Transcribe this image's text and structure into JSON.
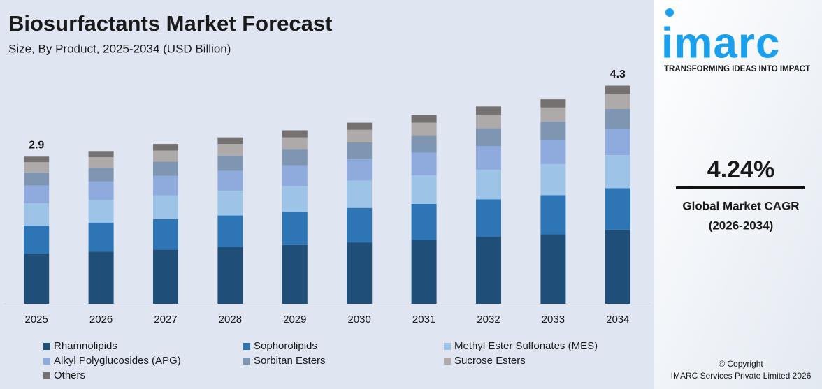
{
  "chart_data": {
    "type": "stacked_bar",
    "title": "Biosurfactants Market Forecast",
    "subtitle": "Size, By Product, 2025-2034 (USD Billion)",
    "categories": [
      "2025",
      "2026",
      "2027",
      "2028",
      "2029",
      "2030",
      "2031",
      "2032",
      "2033",
      "2034"
    ],
    "series": [
      {
        "name": "Rhamnolipids",
        "color": "#1f4e79",
        "values": [
          0.99,
          1.03,
          1.07,
          1.12,
          1.16,
          1.21,
          1.26,
          1.32,
          1.37,
          1.46
        ]
      },
      {
        "name": "Sophorolipids",
        "color": "#2e75b6",
        "values": [
          0.55,
          0.57,
          0.6,
          0.62,
          0.65,
          0.68,
          0.71,
          0.74,
          0.77,
          0.82
        ]
      },
      {
        "name": "Methyl Ester Sulfonates (MES)",
        "color": "#9dc3e6",
        "values": [
          0.44,
          0.45,
          0.47,
          0.49,
          0.51,
          0.54,
          0.56,
          0.58,
          0.61,
          0.65
        ]
      },
      {
        "name": "Alkyl Polyglucosides (APG)",
        "color": "#8faadc",
        "values": [
          0.35,
          0.36,
          0.38,
          0.39,
          0.41,
          0.43,
          0.45,
          0.47,
          0.48,
          0.52
        ]
      },
      {
        "name": "Sorbitan Esters",
        "color": "#7f96b2",
        "values": [
          0.26,
          0.27,
          0.28,
          0.3,
          0.31,
          0.32,
          0.33,
          0.35,
          0.36,
          0.39
        ]
      },
      {
        "name": "Sucrose Esters",
        "color": "#aeaaaa",
        "values": [
          0.2,
          0.21,
          0.22,
          0.23,
          0.24,
          0.25,
          0.26,
          0.27,
          0.28,
          0.3
        ]
      },
      {
        "name": "Others",
        "color": "#767171",
        "values": [
          0.11,
          0.12,
          0.13,
          0.13,
          0.14,
          0.14,
          0.15,
          0.16,
          0.16,
          0.16
        ]
      }
    ],
    "annotations": [
      {
        "x": "2025",
        "value": 2.9
      },
      {
        "x": "2034",
        "value": 4.3
      }
    ],
    "ylim": [
      0,
      4.5
    ],
    "legend": "bottom"
  },
  "sidebar": {
    "logo": "imarc",
    "tagline": "TRANSFORMING IDEAS INTO IMPACT",
    "cagr": "4.24%",
    "cagr_label": "Global Market CAGR",
    "cagr_period": "(2026-2034)",
    "copyright": "© Copyright",
    "company": "IMARC Services Private Limited 2026"
  }
}
